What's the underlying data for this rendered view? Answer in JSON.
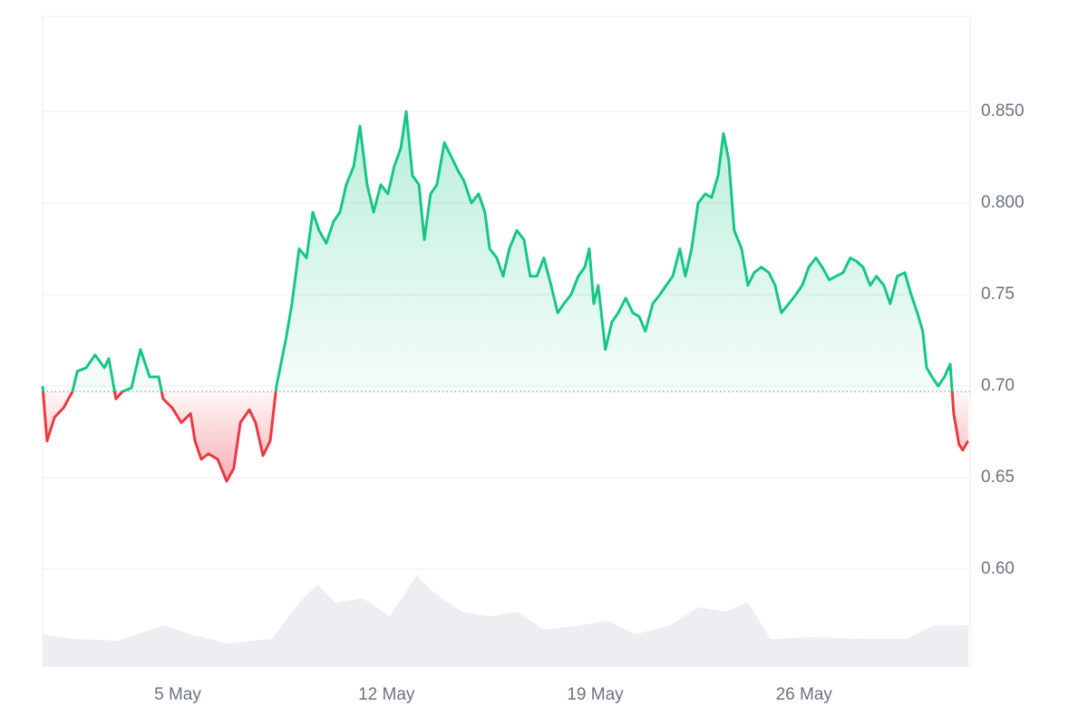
{
  "chart_data": {
    "type": "line",
    "xlim": [
      0.47,
      31.57
    ],
    "xticks": [
      {
        "value": 5,
        "label": "5 May"
      },
      {
        "value": 12,
        "label": "12 May"
      },
      {
        "value": 19,
        "label": "19 May"
      },
      {
        "value": 26,
        "label": "26 May"
      }
    ],
    "ylim": [
      0.547,
      0.902
    ],
    "yticks": [
      {
        "value": 0.6,
        "label": "0.60"
      },
      0.65,
      {
        "value": 0.7,
        "label": "0.70"
      },
      0.75,
      {
        "value": 0.8,
        "label": "0.800"
      },
      {
        "value": 0.85,
        "label": "0.850"
      }
    ],
    "grid": true,
    "baseline": 0.697,
    "up_color": "#16c784",
    "down_color": "#ea3943",
    "x": [
      0.47,
      0.62,
      0.87,
      1.17,
      1.47,
      1.63,
      1.93,
      2.23,
      2.54,
      2.69,
      2.93,
      3.15,
      3.45,
      3.75,
      4.06,
      4.36,
      4.51,
      4.82,
      5.12,
      5.43,
      5.58,
      5.79,
      6.03,
      6.34,
      6.64,
      6.88,
      7.1,
      7.4,
      7.61,
      7.86,
      8.1,
      8.31,
      8.62,
      8.83,
      9.07,
      9.32,
      9.53,
      9.74,
      9.98,
      10.23,
      10.44,
      10.65,
      10.9,
      11.11,
      11.35,
      11.57,
      11.81,
      12.05,
      12.26,
      12.48,
      12.66,
      12.87,
      13.09,
      13.27,
      13.48,
      13.69,
      13.94,
      14.18,
      14.39,
      14.6,
      14.85,
      15.09,
      15.3,
      15.46,
      15.7,
      15.91,
      16.12,
      16.37,
      16.61,
      16.82,
      17.04,
      17.28,
      17.52,
      17.74,
      17.95,
      18.19,
      18.43,
      18.65,
      18.8,
      18.95,
      19.1,
      19.34,
      19.56,
      19.77,
      20.02,
      20.26,
      20.47,
      20.68,
      20.93,
      21.17,
      21.38,
      21.6,
      21.84,
      22.02,
      22.23,
      22.45,
      22.69,
      22.9,
      23.12,
      23.3,
      23.48,
      23.66,
      23.91,
      24.12,
      24.33,
      24.57,
      24.82,
      25.03,
      25.24,
      25.49,
      25.73,
      25.94,
      26.16,
      26.4,
      26.61,
      26.85,
      27.07,
      27.31,
      27.55,
      27.77,
      27.98,
      28.22,
      28.43,
      28.68,
      28.89,
      29.13,
      29.38,
      29.59,
      29.8,
      29.98,
      30.11,
      30.29,
      30.5,
      30.71,
      30.9,
      31.02,
      31.2,
      31.32,
      31.5
    ],
    "values": [
      0.7,
      0.67,
      0.683,
      0.688,
      0.697,
      0.708,
      0.71,
      0.717,
      0.71,
      0.715,
      0.693,
      0.697,
      0.699,
      0.72,
      0.705,
      0.705,
      0.693,
      0.688,
      0.68,
      0.685,
      0.67,
      0.66,
      0.663,
      0.66,
      0.648,
      0.655,
      0.68,
      0.687,
      0.68,
      0.662,
      0.67,
      0.7,
      0.725,
      0.745,
      0.775,
      0.77,
      0.795,
      0.785,
      0.778,
      0.79,
      0.795,
      0.81,
      0.82,
      0.842,
      0.81,
      0.795,
      0.81,
      0.805,
      0.82,
      0.83,
      0.85,
      0.815,
      0.81,
      0.78,
      0.805,
      0.81,
      0.833,
      0.825,
      0.818,
      0.812,
      0.8,
      0.805,
      0.795,
      0.775,
      0.77,
      0.76,
      0.775,
      0.785,
      0.78,
      0.76,
      0.76,
      0.77,
      0.755,
      0.74,
      0.745,
      0.75,
      0.76,
      0.765,
      0.775,
      0.745,
      0.755,
      0.72,
      0.735,
      0.74,
      0.748,
      0.74,
      0.738,
      0.73,
      0.745,
      0.75,
      0.755,
      0.76,
      0.775,
      0.76,
      0.775,
      0.8,
      0.805,
      0.803,
      0.815,
      0.838,
      0.823,
      0.785,
      0.775,
      0.755,
      0.762,
      0.765,
      0.762,
      0.755,
      0.74,
      0.745,
      0.75,
      0.755,
      0.765,
      0.77,
      0.765,
      0.758,
      0.76,
      0.762,
      0.77,
      0.768,
      0.765,
      0.755,
      0.76,
      0.755,
      0.745,
      0.76,
      0.762,
      0.75,
      0.74,
      0.73,
      0.71,
      0.705,
      0.7,
      0.705,
      0.712,
      0.685,
      0.668,
      0.665,
      0.67
    ],
    "volume": {
      "axis": "y2",
      "color": "#eceef1",
      "x": [
        0.47,
        1.47,
        2.99,
        4.51,
        5.43,
        6.64,
        8.16,
        9.07,
        9.68,
        10.29,
        11.2,
        12.11,
        13.02,
        13.63,
        14.54,
        15.46,
        16.37,
        17.28,
        18.5,
        19.41,
        20.32,
        21.53,
        22.45,
        23.36,
        24.12,
        24.88,
        26.4,
        27.92,
        29.44,
        30.35,
        31.5
      ],
      "values": [
        35,
        30,
        28,
        45,
        35,
        25,
        30,
        70,
        90,
        70,
        75,
        55,
        100,
        80,
        60,
        55,
        60,
        40,
        45,
        50,
        35,
        45,
        65,
        60,
        70,
        30,
        32,
        30,
        30,
        45,
        45
      ]
    },
    "y2lim": [
      0,
      717
    ]
  }
}
